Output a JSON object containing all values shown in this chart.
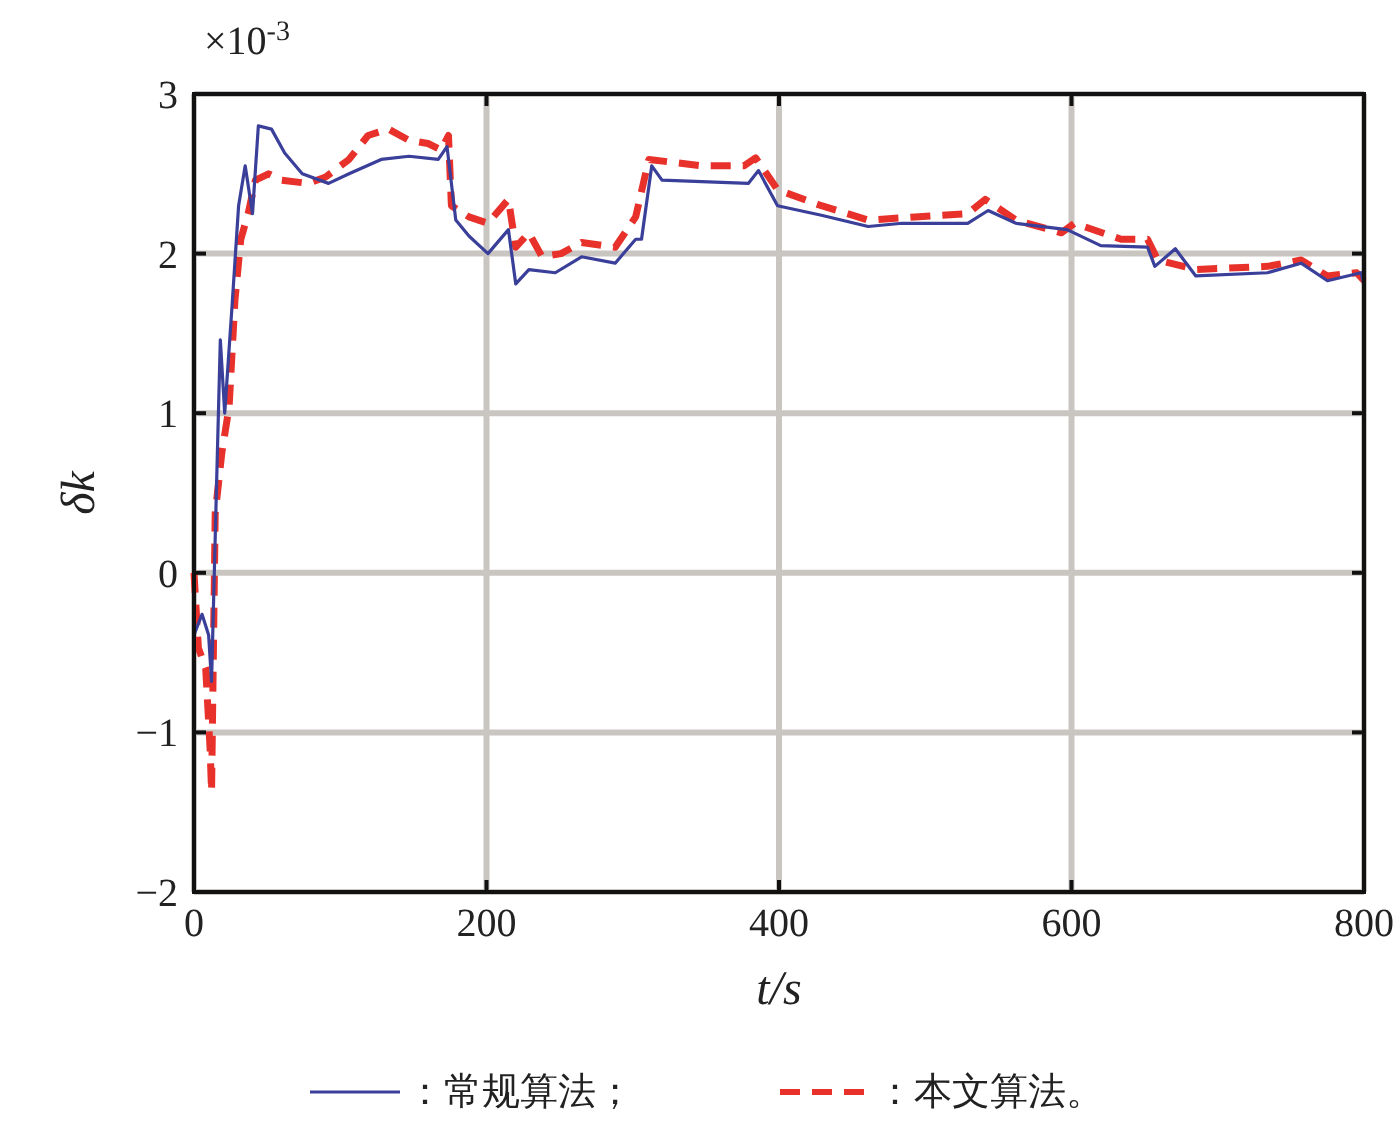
{
  "chart_data": {
    "type": "line",
    "xlabel": "t/s",
    "ylabel": "δk",
    "annotations": [
      "×10$^{-3}$"
    ],
    "xlim": [
      0,
      800
    ],
    "ylim": [
      -2,
      3
    ],
    "xticks": [
      0,
      200,
      400,
      600,
      800
    ],
    "yticks": [
      -2,
      -1,
      0,
      1,
      2,
      3
    ],
    "grid": true,
    "legend": "bottom",
    "series": [
      {
        "name": "：常规算法；",
        "color": "#3a3f9a",
        "line_style": "solid",
        "x": [
          0,
          5.5,
          10,
          12,
          15.5,
          18,
          21,
          26,
          30.5,
          35,
          40,
          44,
          53,
          62,
          74,
          92,
          106,
          128,
          147,
          167,
          173,
          179,
          188,
          201,
          215,
          220,
          229,
          247,
          265,
          288,
          302,
          306,
          313,
          320,
          379,
          386,
          399,
          429,
          461,
          484,
          529,
          543,
          562,
          597,
          620,
          652,
          657,
          671,
          685,
          734,
          757,
          775,
          798,
          800
        ],
        "values": [
          -0.39,
          -0.26,
          -0.39,
          -0.68,
          0.58,
          1.46,
          1.0,
          1.67,
          2.3,
          2.55,
          2.25,
          2.8,
          2.78,
          2.63,
          2.5,
          2.44,
          2.5,
          2.59,
          2.61,
          2.59,
          2.67,
          2.21,
          2.11,
          2.0,
          2.15,
          1.81,
          1.9,
          1.88,
          1.98,
          1.94,
          2.09,
          2.09,
          2.55,
          2.46,
          2.44,
          2.52,
          2.3,
          2.24,
          2.17,
          2.19,
          2.19,
          2.27,
          2.19,
          2.15,
          2.05,
          2.04,
          1.92,
          2.03,
          1.86,
          1.88,
          1.94,
          1.83,
          1.88,
          1.8
        ]
      },
      {
        "name": "：本文算法。",
        "color": "#e8312a",
        "line_style": "dashed",
        "x": [
          0,
          3,
          8,
          11,
          12,
          14.5,
          19,
          24,
          28,
          32,
          37,
          42,
          51,
          60,
          78,
          90,
          106,
          119,
          133,
          147,
          160,
          169,
          174,
          176,
          188,
          201,
          215,
          220,
          229,
          238,
          251,
          265,
          288,
          302,
          311,
          347,
          376,
          384,
          399,
          429,
          461,
          493,
          529,
          541,
          562,
          593,
          602,
          634,
          652,
          659,
          685,
          734,
          757,
          775,
          795,
          800
        ],
        "values": [
          0.0,
          -0.47,
          -0.6,
          -1.1,
          -1.37,
          0.37,
          0.75,
          1.04,
          1.71,
          2.09,
          2.25,
          2.46,
          2.5,
          2.46,
          2.44,
          2.48,
          2.59,
          2.74,
          2.78,
          2.71,
          2.69,
          2.65,
          2.74,
          2.3,
          2.23,
          2.19,
          2.34,
          2.04,
          2.13,
          1.98,
          2.0,
          2.07,
          2.04,
          2.23,
          2.59,
          2.55,
          2.55,
          2.6,
          2.4,
          2.3,
          2.21,
          2.23,
          2.25,
          2.34,
          2.21,
          2.13,
          2.19,
          2.09,
          2.09,
          1.96,
          1.9,
          1.92,
          1.96,
          1.86,
          1.88,
          1.83
        ]
      }
    ]
  }
}
